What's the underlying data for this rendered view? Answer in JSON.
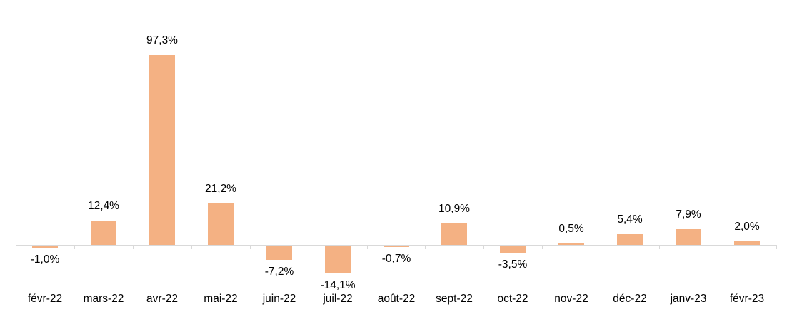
{
  "chart": {
    "background_color": "#ffffff",
    "bar_color": "#F4B183",
    "axis_color": "#D9D9D9",
    "label_color": "#000000"
  },
  "chart_data": {
    "type": "bar",
    "title": "",
    "xlabel": "",
    "ylabel": "",
    "grid": false,
    "legend": false,
    "ylim": [
      -20,
      100
    ],
    "unit": "%",
    "decimal_separator": ",",
    "categories": [
      "févr-22",
      "mars-22",
      "avr-22",
      "mai-22",
      "juin-22",
      "juil-22",
      "août-22",
      "sept-22",
      "oct-22",
      "nov-22",
      "déc-22",
      "janv-23",
      "févr-23"
    ],
    "values": [
      -1.0,
      12.4,
      97.3,
      21.2,
      -7.2,
      -14.1,
      -0.7,
      10.9,
      -3.5,
      0.5,
      5.4,
      7.9,
      2.0
    ],
    "data_labels": [
      "-1,0%",
      "12,4%",
      "97,3%",
      "21,2%",
      "-7,2%",
      "-14,1%",
      "-0,7%",
      "10,9%",
      "-3,5%",
      "0,5%",
      "5,4%",
      "7,9%",
      "2,0%"
    ]
  }
}
